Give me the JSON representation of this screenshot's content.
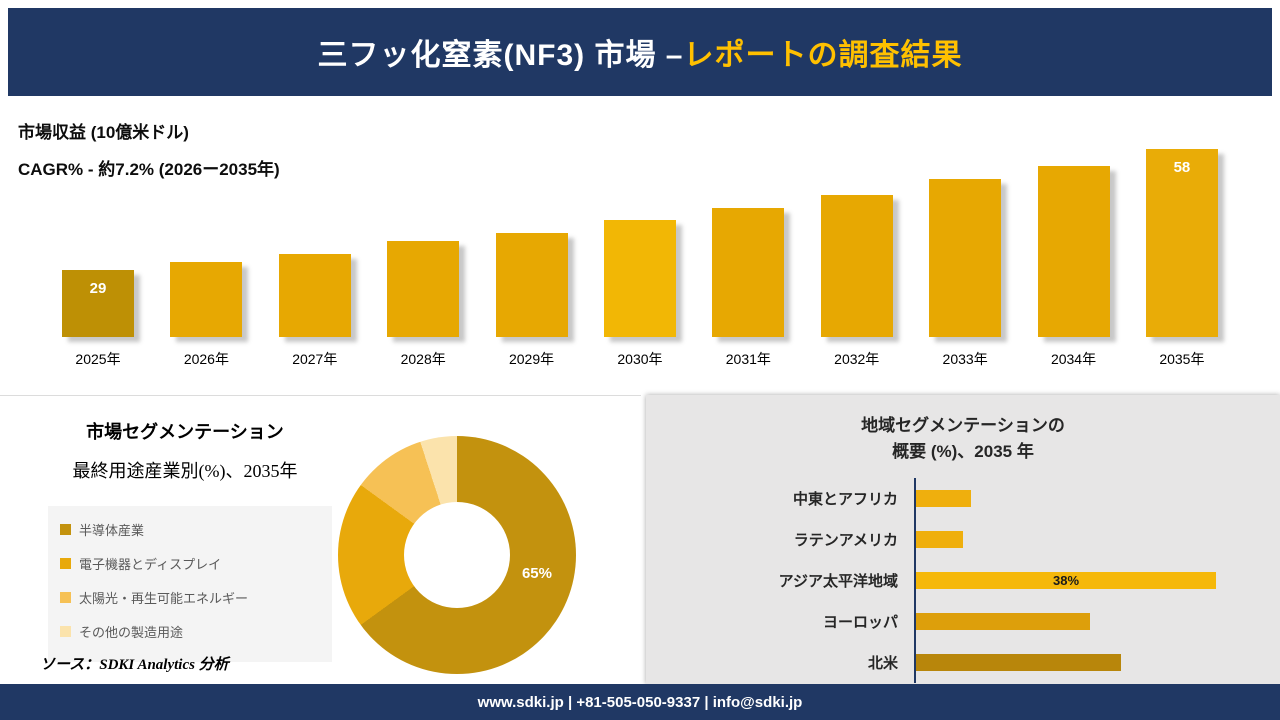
{
  "header": {
    "title_main": "三フッ化窒素(NF3) 市場 –",
    "title_accent": "レポートの調査結果"
  },
  "revenue_chart": {
    "unit_label": "市場収益 (10億米ドル)",
    "cagr_label": "CAGR% - 約7.2% (2026ー2035年)"
  },
  "segmentation": {
    "title": "市場セグメンテーション",
    "subtitle": "最終用途産業別(%)、2035年",
    "center_label": "65%"
  },
  "region": {
    "title_line1": "地域セグメンテーションの",
    "title_line2": "概要 (%)、2035 年"
  },
  "source_note": "ソース：SDKI Analytics 分析",
  "footer": {
    "contact": "www.sdki.jp | +81-505-050-9337 | info@sdki.jp"
  },
  "colors": {
    "navy": "#203864",
    "accent_gold": "#FFC000"
  },
  "chart_data": [
    {
      "type": "bar",
      "title": "市場収益 (10億米ドル)",
      "subtitle": "CAGR% - 約7.2% (2026ー2035年)",
      "categories": [
        "2025年",
        "2026年",
        "2027年",
        "2028年",
        "2029年",
        "2030年",
        "2031年",
        "2032年",
        "2033年",
        "2034年",
        "2035年"
      ],
      "values": [
        29,
        31,
        33,
        36,
        38,
        41,
        44,
        47,
        51,
        54,
        58
      ],
      "value_labels": [
        "29",
        "",
        "",
        "",
        "",
        "",
        "",
        "",
        "",
        "",
        "58"
      ],
      "bar_colors": [
        "#BE9005",
        "#E7A802",
        "#E7A802",
        "#E7A802",
        "#E7A802",
        "#F2B705",
        "#E7A802",
        "#E7A802",
        "#E7A802",
        "#E7A802",
        "#E9AC07"
      ],
      "ylim": [
        13,
        60
      ],
      "grid": false,
      "legend_position": "none"
    },
    {
      "type": "pie",
      "donut": true,
      "title": "市場セグメンテーション",
      "subtitle": "最終用途産業別(%)、2035年",
      "center_label": "65%",
      "slices": [
        {
          "label": "半導体産業",
          "value": 65,
          "color": "#C3920E"
        },
        {
          "label": "電子機器とディスプレイ",
          "value": 20,
          "color": "#E8A90B"
        },
        {
          "label": "太陽光・再生可能エネルギー",
          "value": 10,
          "color": "#F6C155"
        },
        {
          "label": "その他の製造用途",
          "value": 5,
          "color": "#FBE3AC"
        }
      ],
      "legend_position": "left"
    },
    {
      "type": "bar",
      "orientation": "horizontal",
      "title": "地域セグメンテーションの概要 (%)、2035 年",
      "categories": [
        "中東とアフリカ",
        "ラテンアメリカ",
        "アジア太平洋地域",
        "ヨーロッパ",
        "北米"
      ],
      "values": [
        7,
        6,
        38,
        22,
        26
      ],
      "value_labels": [
        "",
        "",
        "38%",
        "",
        ""
      ],
      "bar_colors": [
        "#EFAF0D",
        "#EFAF0D",
        "#F5B80A",
        "#DD9F0B",
        "#B8860B"
      ],
      "xlim": [
        0,
        40
      ],
      "grid": false
    }
  ]
}
